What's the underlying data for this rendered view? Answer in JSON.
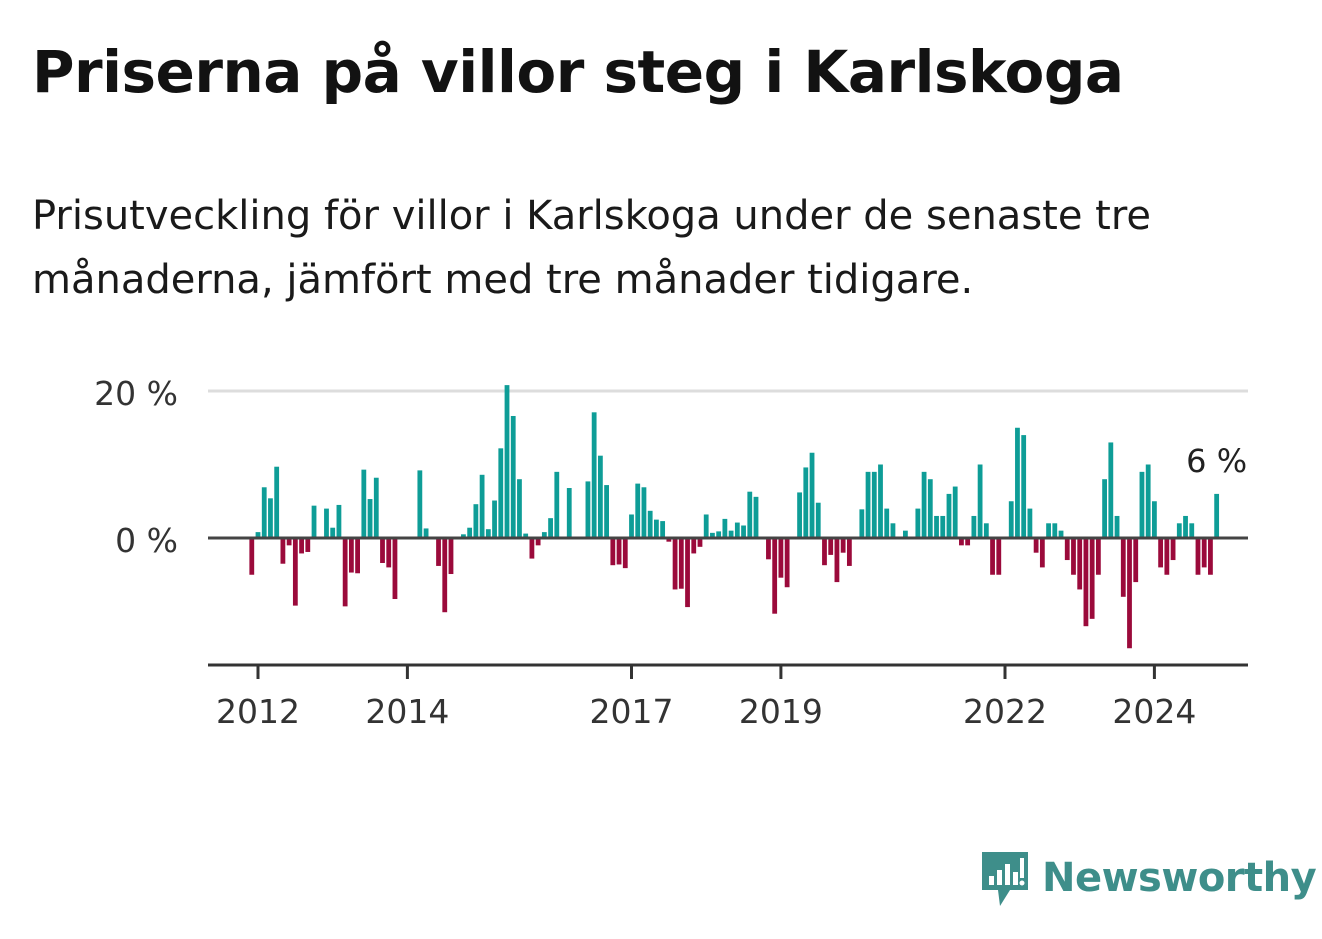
{
  "title": "Priserna på villor steg i Karlskoga",
  "subtitle": "Prisutveckling för villor i Karlskoga under de senaste tre månaderna, jämfört med tre månader tidigare.",
  "brand": "Newsworthy",
  "colors": {
    "positive": "#0e9d97",
    "negative": "#9b0a3b",
    "brand": "#3e8e8a"
  },
  "chart_data": {
    "type": "bar",
    "title": "Priserna på villor steg i Karlskoga",
    "xlabel": "",
    "ylabel": "",
    "y_ticks": [
      {
        "value": 0,
        "label": "0 %"
      },
      {
        "value": 20,
        "label": "20 %"
      }
    ],
    "x_ticks": [
      "2012",
      "2014",
      "2017",
      "2019",
      "2022",
      "2024"
    ],
    "ylim": [
      -17,
      21
    ],
    "grid": true,
    "legend": "none",
    "annotation": {
      "text": "6 %"
    },
    "start": "2011-12",
    "values": [
      -5.0,
      0.8,
      6.9,
      5.4,
      9.7,
      -3.5,
      -1.0,
      -9.2,
      -2.1,
      -1.9,
      4.4,
      0,
      4.0,
      1.4,
      4.5,
      -9.3,
      -4.7,
      -4.8,
      9.3,
      5.3,
      8.2,
      -3.4,
      -4.0,
      -8.3,
      0,
      0,
      0,
      9.2,
      1.3,
      0,
      -3.8,
      -10.1,
      -4.9,
      0,
      0.5,
      1.4,
      4.6,
      8.6,
      1.2,
      5.1,
      12.2,
      20.8,
      16.6,
      8.0,
      0.6,
      -2.8,
      -1.0,
      0.8,
      2.7,
      9.0,
      0,
      6.8,
      0,
      0,
      7.7,
      17.1,
      11.2,
      7.2,
      -3.7,
      -3.6,
      -4.1,
      3.2,
      7.4,
      6.9,
      3.7,
      2.5,
      2.3,
      -0.5,
      -7.0,
      -6.9,
      -9.4,
      -2.1,
      -1.2,
      3.2,
      0.7,
      0.9,
      2.6,
      1.0,
      2.1,
      1.7,
      6.3,
      5.6,
      0.2,
      -2.9,
      -10.3,
      -5.4,
      -6.7,
      0,
      6.2,
      9.6,
      11.6,
      4.8,
      -3.7,
      -2.3,
      -6.0,
      -2.0,
      -3.8,
      0,
      3.9,
      9.0,
      9.0,
      10.0,
      4.0,
      2.0,
      0,
      1.0,
      0,
      4.0,
      9.0,
      8.0,
      3.0,
      3.0,
      6.0,
      7.0,
      -1.0,
      -1.0,
      3.0,
      10.0,
      2.0,
      -5.0,
      -5.0,
      0,
      5.0,
      15.0,
      14.0,
      4.0,
      -2.0,
      -4.0,
      2.0,
      2.0,
      1.0,
      -3.0,
      -5.0,
      -7.0,
      -12.0,
      -11.0,
      -5.0,
      8.0,
      13.0,
      3.0,
      -8.0,
      -15.0,
      -6.0,
      9.0,
      10.0,
      5.0,
      -4.0,
      -5.0,
      -3.0,
      2.0,
      3.0,
      2.0,
      -5.0,
      -4.0,
      -5.0,
      6.0
    ]
  }
}
